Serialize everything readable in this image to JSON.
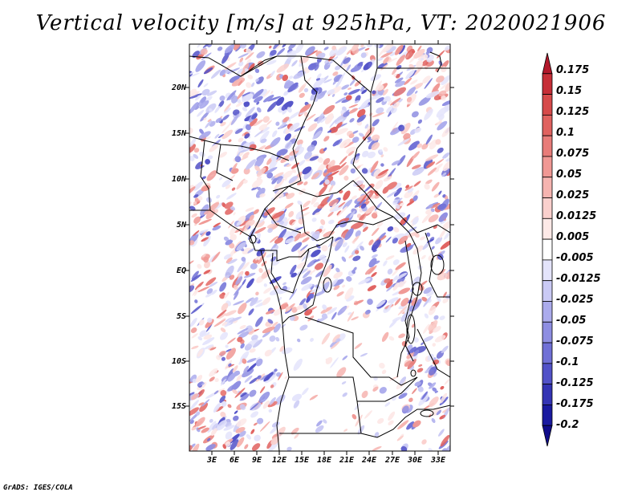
{
  "title": "Vertical velocity [m/s] at 925hPa, VT: 2020021906",
  "footer": "GrADS: IGES/COLA",
  "lat_labels": [
    "20N",
    "15N",
    "10N",
    "5N",
    "EQ",
    "5S",
    "10S",
    "15S"
  ],
  "lon_labels": [
    "3E",
    "6E",
    "9E",
    "12E",
    "15E",
    "18E",
    "21E",
    "24E",
    "27E",
    "30E",
    "33E"
  ],
  "colorbar": {
    "labels": [
      "0.175",
      "0.15",
      "0.125",
      "0.1",
      "0.075",
      "0.05",
      "0.025",
      "0.0125",
      "0.005",
      "-0.005",
      "-0.0125",
      "-0.025",
      "-0.05",
      "-0.075",
      "-0.1",
      "-0.125",
      "-0.175",
      "-0.2"
    ],
    "colors": [
      "#b2182b",
      "#c62e37",
      "#d64a4a",
      "#e0625f",
      "#e87c79",
      "#f09894",
      "#f6b4b0",
      "#fad0cd",
      "#fde9e7",
      "#ffffff",
      "#e4e4fb",
      "#cacaf5",
      "#ababec",
      "#8e8ee2",
      "#7070d6",
      "#5252c8",
      "#3434b4",
      "#1a1aa0",
      "#100c8a"
    ]
  },
  "colors": {
    "positive": "#e06a6a",
    "negative": "#6a6ad8",
    "border": "#000000"
  }
}
